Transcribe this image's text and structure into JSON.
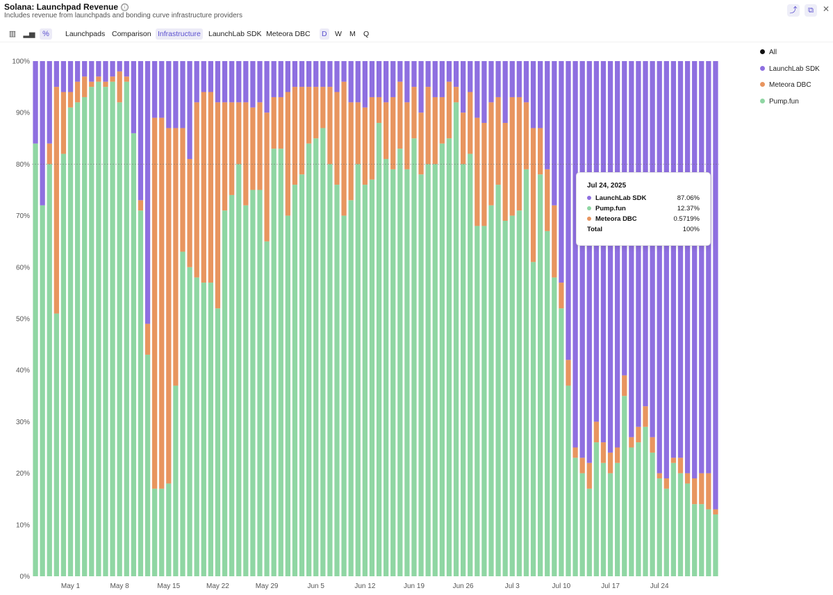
{
  "header": {
    "title": "Solana: Launchpad Revenue",
    "subtitle": "Includes revenue from launchpads and bonding curve infrastructure providers",
    "info_icon": "ⓘ",
    "share_icon": "⤴",
    "embed_icon": "⧉",
    "close_icon": "✕"
  },
  "toolbar": {
    "chart_type_icons": [
      "bar-chart-icon",
      "column-chart-icon",
      "percent-icon"
    ],
    "chart_type_glyphs": [
      "▥",
      "▂▅",
      "%"
    ],
    "tabs": [
      "Launchpads",
      "Comparison",
      "Infrastructure",
      "LaunchLab SDK",
      "Meteora DBC"
    ],
    "active_tab": "Infrastructure",
    "periods": [
      "D",
      "W",
      "M",
      "Q"
    ],
    "active_period": "D"
  },
  "legend": {
    "items": [
      {
        "label": "All",
        "color": "#111111"
      },
      {
        "label": "LaunchLab SDK",
        "color": "#8e6fe0"
      },
      {
        "label": "Meteora DBC",
        "color": "#e8955f"
      },
      {
        "label": "Pump.fun",
        "color": "#8fd6a3"
      }
    ]
  },
  "tooltip": {
    "date": "Jul 24, 2025",
    "rows": [
      {
        "name": "LaunchLab SDK",
        "value": "87.06%",
        "color": "#8e6fe0"
      },
      {
        "name": "Pump.fun",
        "value": "12.37%",
        "color": "#8fd6a3"
      },
      {
        "name": "Meteora DBC",
        "value": "0.5719%",
        "color": "#e8955f"
      }
    ],
    "total_label": "Total",
    "total_value": "100%"
  },
  "chart_data": {
    "type": "bar",
    "stacked": true,
    "normalized_percent": true,
    "x_start": "2025-04-26",
    "x_end": "2025-07-24",
    "x_tick_labels": [
      "May 1",
      "May 8",
      "May 15",
      "May 22",
      "May 29",
      "Jun 5",
      "Jun 12",
      "Jun 19",
      "Jun 26",
      "Jul 3",
      "Jul 10",
      "Jul 17",
      "Jul 24"
    ],
    "y_tick_labels": [
      "0%",
      "10%",
      "20%",
      "30%",
      "40%",
      "50%",
      "60%",
      "70%",
      "80%",
      "90%",
      "100%"
    ],
    "ylim": [
      0,
      100
    ],
    "grid": false,
    "reference_line_y": 80,
    "legend_position": "right",
    "colors": {
      "Pump.fun": "#8fd6a3",
      "Meteora DBC": "#e8955f",
      "LaunchLab SDK": "#8e6fe0"
    },
    "series": [
      {
        "name": "Pump.fun",
        "values": [
          84,
          72,
          80,
          51,
          82,
          91,
          92,
          93,
          95,
          96,
          95,
          96,
          92,
          96,
          86,
          71,
          43,
          17,
          17,
          18,
          37,
          63,
          60,
          58,
          57,
          57,
          52,
          71,
          74,
          80,
          72,
          75,
          75,
          65,
          83,
          83,
          70,
          76,
          78,
          84,
          85,
          87,
          80,
          76,
          70,
          73,
          80,
          76,
          77,
          88,
          81,
          79,
          83,
          79,
          85,
          78,
          80,
          80,
          84,
          85,
          92,
          80,
          82,
          68,
          68,
          72,
          76,
          69,
          70,
          71,
          79,
          61,
          78,
          67,
          58,
          52,
          37,
          23,
          20,
          17,
          26,
          22,
          20,
          22,
          35,
          25,
          26,
          29,
          24,
          19,
          17,
          22,
          20,
          18,
          14,
          14,
          13,
          12
        ]
      },
      {
        "name": "Meteora DBC",
        "values": [
          0,
          0,
          4,
          44,
          12,
          3,
          4,
          4,
          1,
          1,
          1,
          1,
          6,
          1,
          0,
          2,
          6,
          72,
          72,
          69,
          50,
          24,
          21,
          34,
          37,
          37,
          40,
          21,
          18,
          12,
          20,
          16,
          17,
          25,
          10,
          10,
          24,
          19,
          17,
          11,
          10,
          8,
          15,
          18,
          26,
          19,
          12,
          15,
          16,
          5,
          11,
          14,
          13,
          13,
          10,
          12,
          15,
          13,
          9,
          11,
          3,
          10,
          12,
          21,
          20,
          20,
          17,
          19,
          23,
          22,
          13,
          26,
          9,
          12,
          14,
          5,
          5,
          2,
          3,
          5,
          4,
          4,
          4,
          3,
          4,
          2,
          3,
          4,
          3,
          1,
          2,
          1,
          3,
          2,
          5,
          6,
          7,
          1
        ]
      },
      {
        "name": "LaunchLab SDK",
        "values": [
          16,
          28,
          16,
          5,
          6,
          6,
          4,
          3,
          4,
          3,
          4,
          3,
          2,
          3,
          14,
          27,
          51,
          11,
          11,
          13,
          13,
          13,
          19,
          8,
          6,
          6,
          8,
          8,
          8,
          8,
          8,
          9,
          8,
          10,
          7,
          7,
          6,
          5,
          5,
          5,
          5,
          5,
          5,
          6,
          4,
          8,
          8,
          9,
          7,
          7,
          8,
          7,
          4,
          8,
          5,
          10,
          5,
          7,
          7,
          4,
          5,
          10,
          6,
          11,
          12,
          8,
          7,
          12,
          7,
          7,
          8,
          13,
          13,
          21,
          28,
          43,
          58,
          75,
          77,
          78,
          70,
          74,
          76,
          75,
          61,
          73,
          71,
          67,
          73,
          80,
          81,
          77,
          77,
          80,
          81,
          80,
          80,
          87
        ]
      }
    ]
  }
}
